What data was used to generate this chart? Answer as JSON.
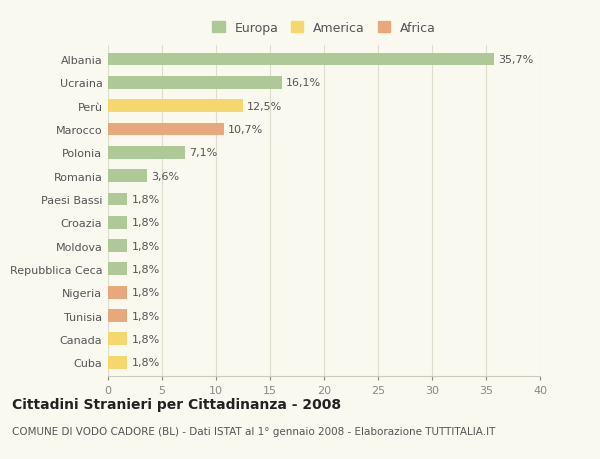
{
  "categories": [
    "Albania",
    "Ucraina",
    "Perù",
    "Marocco",
    "Polonia",
    "Romania",
    "Paesi Bassi",
    "Croazia",
    "Moldova",
    "Repubblica Ceca",
    "Nigeria",
    "Tunisia",
    "Canada",
    "Cuba"
  ],
  "values": [
    35.7,
    16.1,
    12.5,
    10.7,
    7.1,
    3.6,
    1.8,
    1.8,
    1.8,
    1.8,
    1.8,
    1.8,
    1.8,
    1.8
  ],
  "labels": [
    "35,7%",
    "16,1%",
    "12,5%",
    "10,7%",
    "7,1%",
    "3,6%",
    "1,8%",
    "1,8%",
    "1,8%",
    "1,8%",
    "1,8%",
    "1,8%",
    "1,8%",
    "1,8%"
  ],
  "colors": [
    "#aec898",
    "#aec898",
    "#f5d76e",
    "#e8a87c",
    "#aec898",
    "#aec898",
    "#aec898",
    "#aec898",
    "#aec898",
    "#aec898",
    "#e8a87c",
    "#e8a87c",
    "#f5d76e",
    "#f5d76e"
  ],
  "legend_labels": [
    "Europa",
    "America",
    "Africa"
  ],
  "legend_colors": [
    "#aec898",
    "#f5d76e",
    "#e8a87c"
  ],
  "xlim": [
    0,
    40
  ],
  "xticks": [
    0,
    5,
    10,
    15,
    20,
    25,
    30,
    35,
    40
  ],
  "title_main": "Cittadini Stranieri per Cittadinanza - 2008",
  "title_sub": "COMUNE DI VODO CADORE (BL) - Dati ISTAT al 1° gennaio 2008 - Elaborazione TUTTITALIA.IT",
  "bg_color": "#f9f9f0",
  "bar_height": 0.55,
  "label_fontsize": 8,
  "tick_fontsize": 8,
  "title_fontsize": 10,
  "subtitle_fontsize": 7.5
}
